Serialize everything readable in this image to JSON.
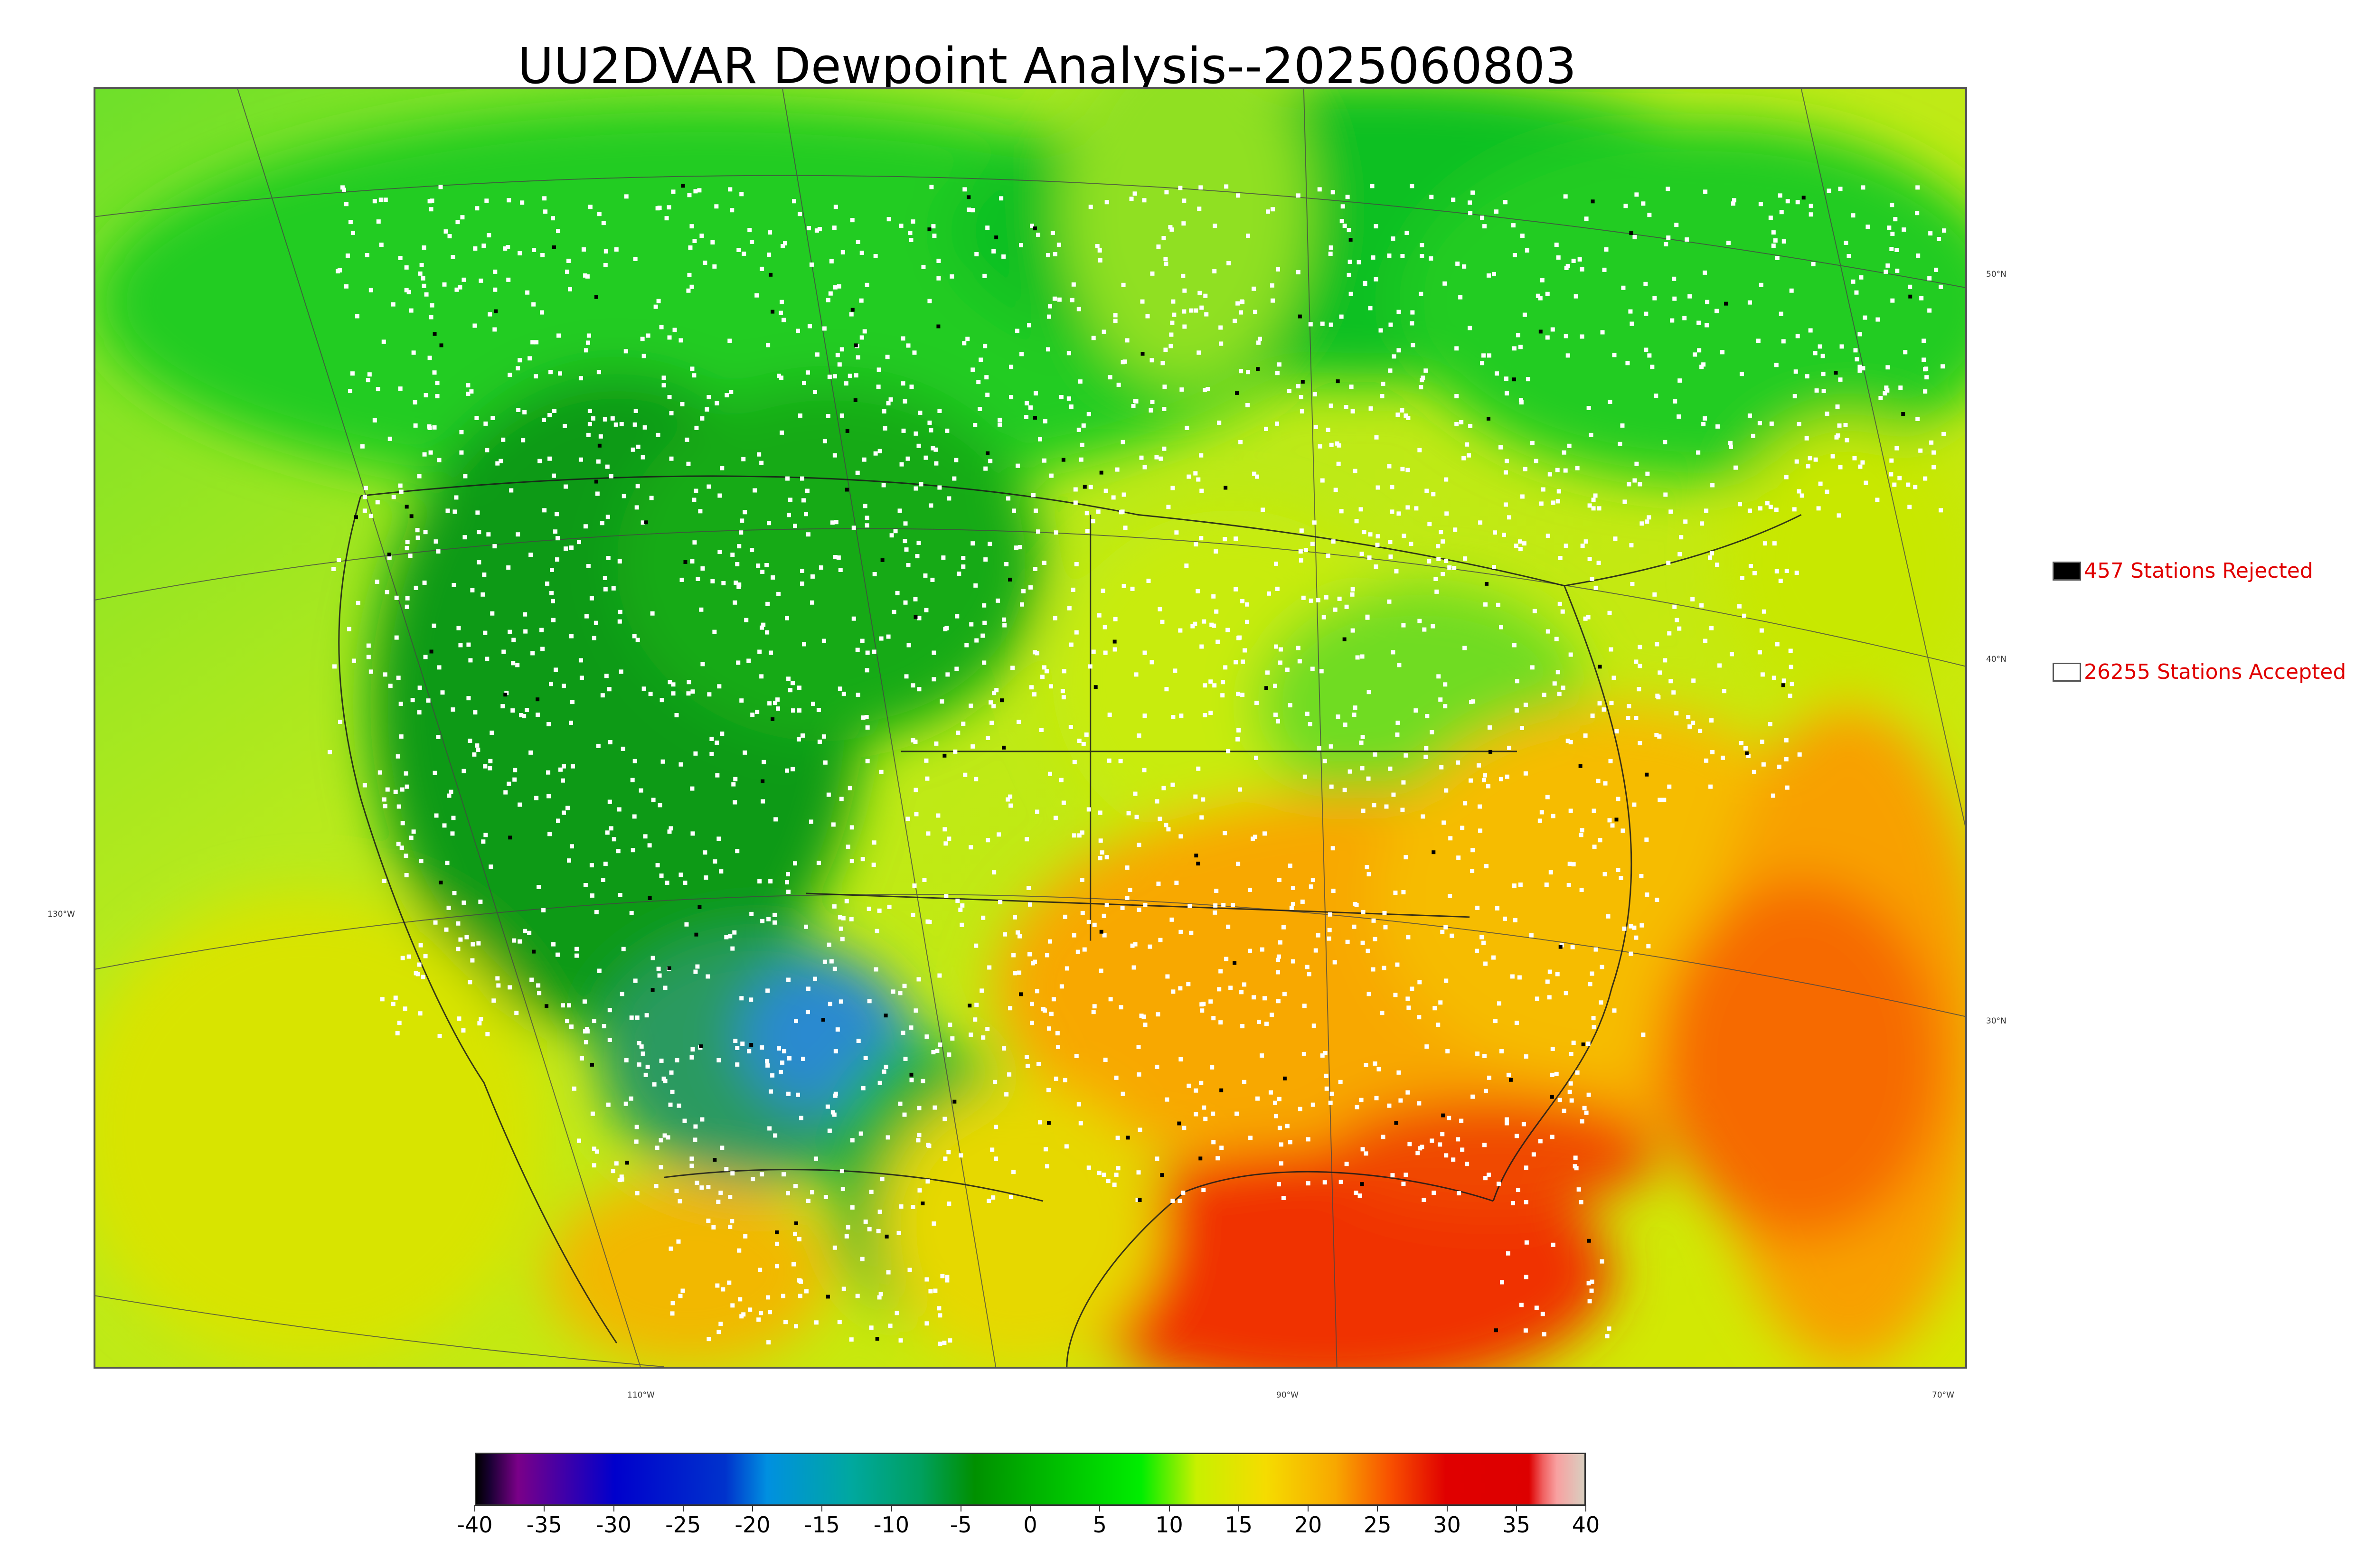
{
  "title": "UU2DVAR Dewpoint Analysis--2025060803",
  "map": {
    "latitude_labels": [
      "50°N",
      "40°N",
      "30°N"
    ],
    "longitude_labels": [
      "130°W",
      "110°W",
      "90°W",
      "70°W"
    ]
  },
  "legend": {
    "rejected": {
      "label": "457 Stations Rejected",
      "color": "#000000"
    },
    "accepted": {
      "label": "26255 Stations Accepted",
      "color": "#ffffff"
    }
  },
  "colorbar": {
    "ticks": [
      "-40",
      "-35",
      "-30",
      "-25",
      "-20",
      "-15",
      "-10",
      "-5",
      "0",
      "5",
      "10",
      "15",
      "20",
      "25",
      "30",
      "35",
      "40"
    ],
    "range": [
      -40,
      40
    ],
    "stops": [
      {
        "value": -40,
        "color": "#000000"
      },
      {
        "value": -39,
        "color": "#1a0033"
      },
      {
        "value": -37,
        "color": "#7a0088"
      },
      {
        "value": -30,
        "color": "#0000cc"
      },
      {
        "value": -22,
        "color": "#0033cc"
      },
      {
        "value": -19,
        "color": "#0090e0"
      },
      {
        "value": -13,
        "color": "#00a8a0"
      },
      {
        "value": -8,
        "color": "#00a060"
      },
      {
        "value": -4,
        "color": "#009000"
      },
      {
        "value": 0,
        "color": "#00b000"
      },
      {
        "value": 8,
        "color": "#00ee00"
      },
      {
        "value": 12,
        "color": "#c8f000"
      },
      {
        "value": 17,
        "color": "#f5dc00"
      },
      {
        "value": 22,
        "color": "#f8a800"
      },
      {
        "value": 26,
        "color": "#f85000"
      },
      {
        "value": 30,
        "color": "#e00000"
      },
      {
        "value": 36,
        "color": "#dd0000"
      },
      {
        "value": 37,
        "color": "#f06060"
      },
      {
        "value": 38,
        "color": "#f8a0a0"
      },
      {
        "value": 40,
        "color": "#d9cfc0"
      }
    ]
  }
}
